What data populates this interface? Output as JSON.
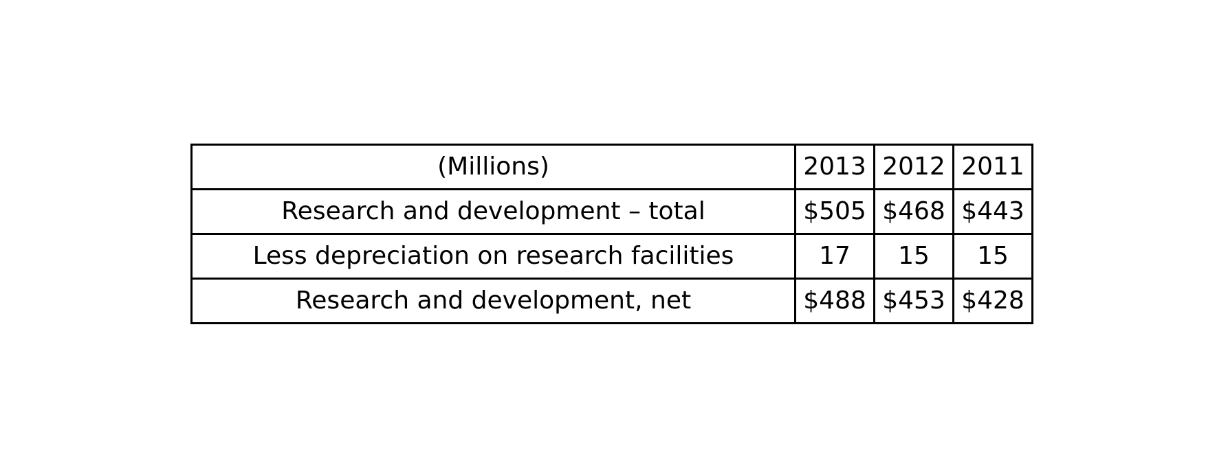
{
  "chart_data": {
    "type": "table",
    "columns": [
      "(Millions)",
      "2013",
      "2012",
      "2011"
    ],
    "rows": [
      [
        "Research and development – total",
        "$505",
        "$468",
        "$443"
      ],
      [
        "Less depreciation on research facilities",
        "17",
        "15",
        "15"
      ],
      [
        "Research and development, net",
        "$488",
        "$453",
        "$428"
      ]
    ]
  }
}
